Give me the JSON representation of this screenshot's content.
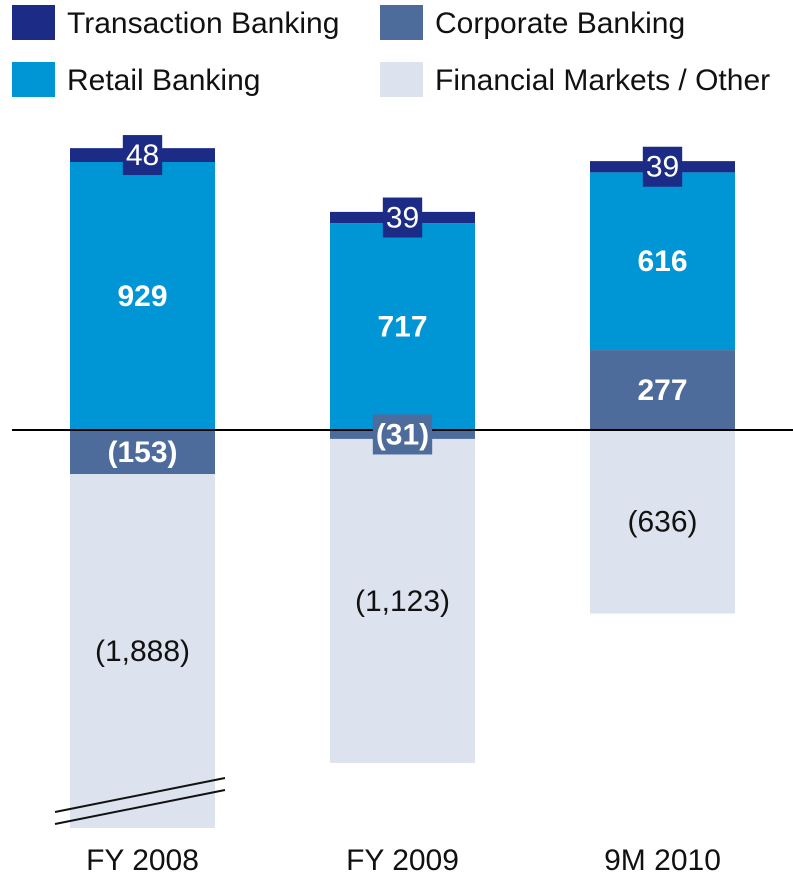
{
  "chart_data": {
    "type": "stacked_bar",
    "categories": [
      "FY 2008",
      "FY 2009",
      "9M 2010"
    ],
    "series": [
      {
        "name": "Transaction Banking",
        "color": "#1c2c86",
        "values": [
          48,
          39,
          39
        ]
      },
      {
        "name": "Corporate Banking",
        "color": "#4d6b9b",
        "values": [
          -153,
          -31,
          277
        ],
        "value_labels": [
          "(153)",
          "(31)",
          "277"
        ]
      },
      {
        "name": "Retail Banking",
        "color": "#0096d6",
        "values": [
          929,
          717,
          616
        ]
      },
      {
        "name": "Financial Markets / Other",
        "color": "#dde3ee",
        "values": [
          -1888,
          -1123,
          -636
        ],
        "value_labels": [
          "(1,888)",
          "(1,123)",
          "(636)"
        ]
      }
    ]
  }
}
